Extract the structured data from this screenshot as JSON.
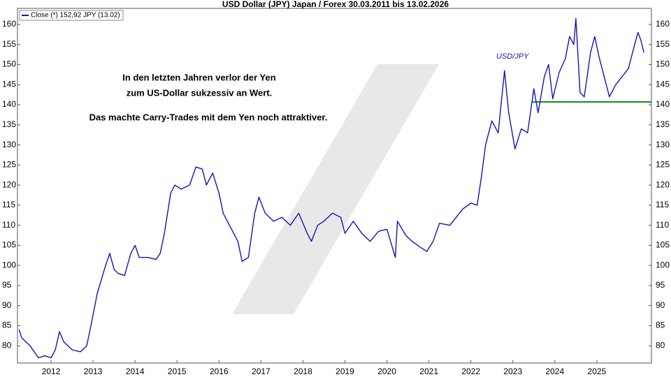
{
  "chart_data": {
    "type": "line",
    "title": "USD Dollar (JPY) Japan / Forex 30.03.2011 bis 13.02.2026",
    "legend": "Close (*) 152,92 JPY (13.02)",
    "series_label": "USD/JPY",
    "annotations": [
      "In den letzten Jahren verlor der Yen",
      "zum US-Dollar sukzessiv an Wert.",
      "Das machte Carry-Trades mit dem Yen noch attraktiver."
    ],
    "xlim": [
      2011.2,
      2026.3
    ],
    "xticks": [
      {
        "value": 2012,
        "label": "2012"
      },
      {
        "value": 2013,
        "label": "2013"
      },
      {
        "value": 2014,
        "label": "2014"
      },
      {
        "value": 2015,
        "label": "2015"
      },
      {
        "value": 2016,
        "label": "2016"
      },
      {
        "value": 2017,
        "label": "2017"
      },
      {
        "value": 2018,
        "label": "2018"
      },
      {
        "value": 2019,
        "label": "2019"
      },
      {
        "value": 2020,
        "label": "2020"
      },
      {
        "value": 2021,
        "label": "2021"
      },
      {
        "value": 2022,
        "label": "2022"
      },
      {
        "value": 2023,
        "label": "2023"
      },
      {
        "value": 2024,
        "label": "2024"
      },
      {
        "value": 2025,
        "label": "2025"
      }
    ],
    "ylim": [
      75.7,
      164
    ],
    "yticks": [
      80,
      85,
      90,
      95,
      100,
      105,
      110,
      115,
      120,
      125,
      130,
      135,
      140,
      145,
      150,
      155,
      160
    ],
    "grid": false,
    "series": [
      {
        "name": "Close (*)",
        "color": "#1414b4",
        "x": [
          2011.24,
          2011.3,
          2011.5,
          2011.7,
          2011.85,
          2012.0,
          2012.1,
          2012.2,
          2012.3,
          2012.5,
          2012.7,
          2012.85,
          2012.95,
          2013.1,
          2013.3,
          2013.4,
          2013.5,
          2013.6,
          2013.75,
          2013.9,
          2014.0,
          2014.1,
          2014.3,
          2014.5,
          2014.6,
          2014.7,
          2014.85,
          2014.95,
          2015.1,
          2015.3,
          2015.45,
          2015.6,
          2015.7,
          2015.85,
          2016.0,
          2016.1,
          2016.25,
          2016.45,
          2016.55,
          2016.7,
          2016.85,
          2016.95,
          2017.1,
          2017.3,
          2017.5,
          2017.7,
          2017.9,
          2018.1,
          2018.2,
          2018.35,
          2018.5,
          2018.7,
          2018.9,
          2019.0,
          2019.2,
          2019.4,
          2019.6,
          2019.8,
          2020.0,
          2020.2,
          2020.25,
          2020.45,
          2020.6,
          2020.8,
          2020.95,
          2021.1,
          2021.25,
          2021.5,
          2021.8,
          2022.0,
          2022.15,
          2022.25,
          2022.35,
          2022.5,
          2022.65,
          2022.8,
          2022.9,
          2023.05,
          2023.2,
          2023.35,
          2023.5,
          2023.6,
          2023.75,
          2023.85,
          2023.95,
          2024.1,
          2024.25,
          2024.35,
          2024.45,
          2024.5,
          2024.6,
          2024.7,
          2024.85,
          2024.95,
          2025.05,
          2025.2,
          2025.3,
          2025.45,
          2025.6,
          2025.75,
          2025.9,
          2025.98,
          2026.05,
          2026.12
        ],
        "values": [
          84,
          82,
          80,
          77,
          77.5,
          77,
          79,
          83.5,
          81,
          79,
          78.5,
          80,
          85,
          93,
          100,
          103,
          99,
          98,
          97.5,
          103,
          105,
          102,
          102,
          101.5,
          103,
          108,
          118,
          120,
          119,
          120,
          124.5,
          124,
          120,
          123,
          118,
          113,
          110,
          106,
          101,
          102,
          113,
          117,
          113,
          111,
          112,
          110,
          113,
          108,
          106,
          110,
          111,
          113,
          112,
          108,
          111,
          108,
          106,
          108.5,
          109,
          102,
          111,
          107.5,
          106,
          104.5,
          103.5,
          106,
          110.5,
          110,
          114,
          115.5,
          115,
          122,
          130,
          136,
          133,
          148.5,
          138,
          129,
          134,
          133,
          144,
          138,
          147,
          150,
          141.5,
          148,
          151.5,
          157,
          155,
          161.5,
          143,
          142,
          153,
          157,
          152,
          146,
          142,
          145,
          147,
          149,
          155,
          158,
          156,
          153
        ]
      }
    ],
    "reference_line": {
      "value": 140.7,
      "x": [
        2023.45,
        2026.3
      ],
      "color": "#1a8a1a"
    }
  }
}
